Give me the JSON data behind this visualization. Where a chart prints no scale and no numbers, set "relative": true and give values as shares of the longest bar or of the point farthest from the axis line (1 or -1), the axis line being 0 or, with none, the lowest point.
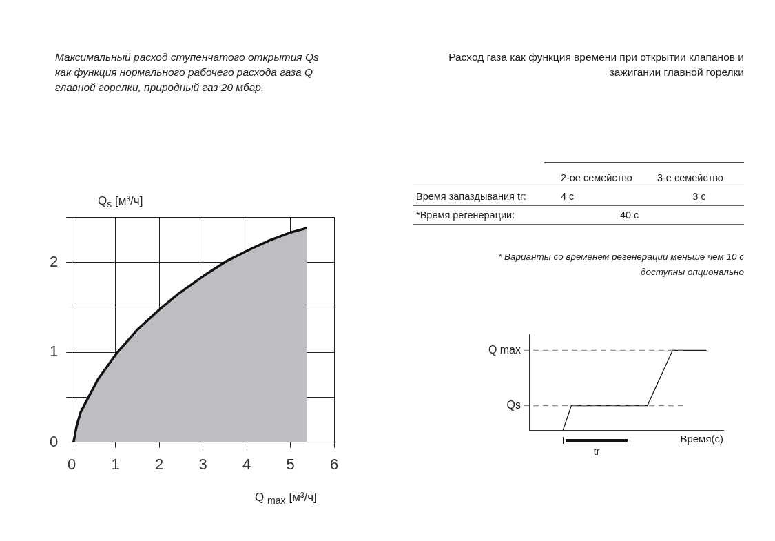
{
  "chart_data": [
    {
      "type": "area",
      "title": "Максимальный расход ступенчатого открытия Qs как функция нормального рабочего расхода газа Q главной горелки, природный газ 20 мбар.",
      "xlabel": "Q $_{max}$ [м³/ч]",
      "ylabel": "Q$_{s}$ [м³/ч]",
      "xlim": [
        0,
        6
      ],
      "ylim": [
        0,
        2.5
      ],
      "xticks": [
        0,
        1,
        2,
        3,
        4,
        5,
        6
      ],
      "yticks": [
        0,
        {
          "value": 0.5,
          "label": null
        },
        1,
        {
          "value": 1.5,
          "label": null
        },
        2,
        {
          "value": 2.5,
          "label": null
        }
      ],
      "grid": true,
      "legend": false,
      "marker": "none",
      "series": [
        {
          "color": "#bdbec2",
          "x": [
            0.04,
            0.11,
            0.2,
            0.37,
            0.6,
            1.03,
            1.5,
            2.04,
            2.44,
            3.02,
            3.53,
            4.02,
            4.51,
            5.0,
            5.38
          ],
          "values": [
            0,
            0.18,
            0.33,
            0.49,
            0.7,
            0.99,
            1.25,
            1.49,
            1.65,
            1.85,
            2.01,
            2.13,
            2.24,
            2.33,
            2.38
          ]
        }
      ]
    },
    {
      "type": "other",
      "title": "Расход газа как функция времени при открытии клапанов и зажигании главной горелки",
      "annotations": [
        "2-ое семейство",
        "3-е семейство",
        "Время запаздывания tr:",
        "4 с",
        "3 с",
        "*Время регенерации:",
        "40 с",
        "* Варианты со временем регенерации меньше чем 10 с доступны опционально"
      ]
    },
    {
      "type": "line",
      "relative": true,
      "xlabel": "Время(с)",
      "legend": false,
      "marker": "none",
      "line_style": "solid",
      "annotations": [
        "tr"
      ],
      "categories": [
        null,
        null,
        null,
        null,
        null,
        null,
        null,
        null,
        null,
        null,
        null,
        null,
        null,
        null,
        null,
        null,
        null,
        null,
        null,
        null,
        null,
        null,
        null,
        null
      ],
      "series": [
        {
          "color": "#1a1a1a",
          "values": [
            null,
            null,
            null,
            null,
            0,
            0.31,
            0.31,
            0.31,
            0.31,
            0.31,
            0.31,
            0.31,
            0.31,
            0.31,
            0.31,
            0.54,
            0.77,
            1,
            1,
            1,
            1,
            1,
            null,
            null
          ]
        }
      ],
      "ref_lines": [
        {
          "axis": "y",
          "value": 1,
          "label": "Q max",
          "color": "#777777",
          "line_style": "dashed"
        },
        {
          "axis": "y",
          "value": 0.31,
          "label": "Qs",
          "color": "#777777",
          "line_style": "dashed"
        }
      ]
    }
  ]
}
